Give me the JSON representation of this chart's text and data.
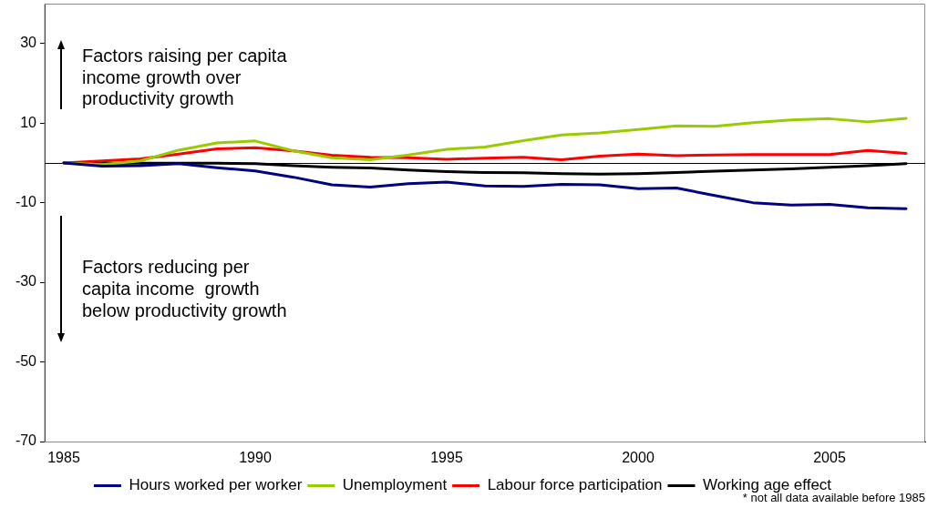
{
  "chart_data": {
    "type": "line",
    "categories": [
      "1985",
      null,
      null,
      null,
      null,
      "1990",
      null,
      null,
      null,
      null,
      "1995",
      null,
      null,
      null,
      null,
      "2000",
      null,
      null,
      null,
      null,
      "2005",
      null,
      null
    ],
    "series": [
      {
        "name": "Hours worked per worker",
        "color": "#000080",
        "values": [
          0,
          -0.8,
          -0.7,
          -0.2,
          -1.2,
          -2.0,
          -3.6,
          -5.5,
          -6.1,
          -5.2,
          -4.8,
          -5.8,
          -5.9,
          -5.4,
          -5.5,
          -6.5,
          -6.3,
          -8.2,
          -10.0,
          -10.6,
          -10.4,
          -11.3,
          -11.5
        ]
      },
      {
        "name": "Unemployment",
        "color": "#99cc00",
        "values": [
          0,
          -0.4,
          0.5,
          3.2,
          5.0,
          5.5,
          3.0,
          1.3,
          0.8,
          2.0,
          3.4,
          4.0,
          5.6,
          7.0,
          7.5,
          8.4,
          9.3,
          9.2,
          10.1,
          10.8,
          11.1,
          10.3,
          11.2
        ]
      },
      {
        "name": "Labour force participation",
        "color": "#ff0000",
        "values": [
          0,
          0.5,
          1.0,
          2.2,
          3.5,
          3.8,
          3.0,
          1.9,
          1.4,
          1.3,
          0.9,
          1.2,
          1.4,
          0.8,
          1.7,
          2.2,
          1.8,
          2.0,
          2.1,
          2.1,
          2.1,
          3.1,
          2.4
        ]
      },
      {
        "name": "Working age effect",
        "color": "#000000",
        "values": [
          0,
          -0.1,
          -0.1,
          -0.1,
          -0.1,
          -0.2,
          -0.7,
          -1.1,
          -1.3,
          -1.8,
          -2.2,
          -2.4,
          -2.5,
          -2.7,
          -2.8,
          -2.7,
          -2.4,
          -2.1,
          -1.8,
          -1.5,
          -1.1,
          -0.7,
          -0.2
        ]
      }
    ],
    "ylim": [
      -70,
      40
    ],
    "yticks": [
      -70,
      -50,
      -30,
      -10,
      10,
      30
    ],
    "ref_lines": [
      {
        "axis": "y",
        "value": 0,
        "color": "#000000"
      }
    ],
    "legend": "bottom",
    "marker": "none",
    "line_style": "solid",
    "annotations": [
      "Factors raising per capita income growth over productivity growth",
      "Factors reducing per capita income  growth below productivity growth",
      "* not all data available before 1985"
    ]
  }
}
